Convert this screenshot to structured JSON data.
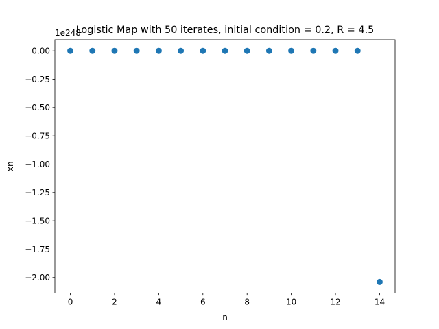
{
  "chart_data": {
    "type": "scatter",
    "title": "Logistic Map with 50 iterates, initial condition = 0.2, R = 4.5",
    "xlabel": "n",
    "ylabel": "xn",
    "y_offset_text": "1e248",
    "xlim": [
      -0.7,
      14.7
    ],
    "ylim": [
      -2.138,
      0.098
    ],
    "x_ticks": [
      0,
      2,
      4,
      6,
      8,
      10,
      12,
      14
    ],
    "x_tick_labels": [
      "0",
      "2",
      "4",
      "6",
      "8",
      "10",
      "12",
      "14"
    ],
    "y_ticks": [
      0,
      -0.25,
      -0.5,
      -0.75,
      -1.0,
      -1.25,
      -1.5,
      -1.75,
      -2.0
    ],
    "y_tick_labels": [
      "0.00",
      "−0.25",
      "−0.50",
      "−0.75",
      "−1.00",
      "−1.25",
      "−1.50",
      "−1.75",
      "−2.00"
    ],
    "grid": false,
    "marker_color": "#1f77b4",
    "series": [
      {
        "x": [
          0,
          1,
          2,
          3,
          4,
          5,
          6,
          7,
          8,
          9,
          10,
          11,
          12,
          13,
          14
        ],
        "y": [
          0,
          0,
          0,
          0,
          0,
          0,
          0,
          0,
          0,
          0,
          0,
          0,
          0,
          0,
          -2.04
        ]
      }
    ]
  }
}
